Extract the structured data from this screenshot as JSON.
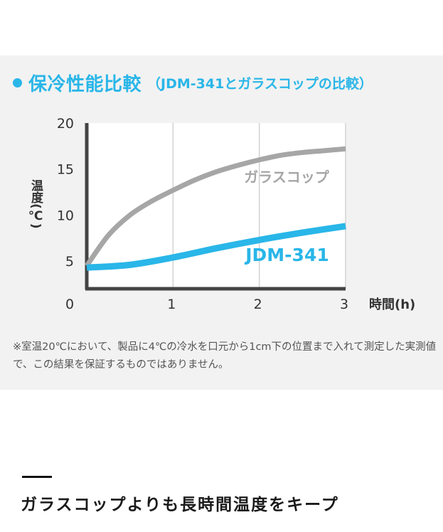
{
  "header": {
    "title": "保冷性能比較",
    "subtitle": "（JDM-341とガラスコップの比較）",
    "accent_color": "#29b6e8"
  },
  "chart_data": {
    "type": "line",
    "ylabel": "温度(℃)",
    "xlabel": "時間(h)",
    "ylim": [
      0,
      20
    ],
    "xlim": [
      0,
      3
    ],
    "y_ticks": [
      "20",
      "15",
      "10",
      "5"
    ],
    "x_ticks": [
      "0",
      "1",
      "2",
      "3"
    ],
    "grid": true,
    "series": [
      {
        "name": "ガラスコップ",
        "color": "#a6a6a6",
        "points": [
          [
            0,
            4.5
          ],
          [
            0.25,
            7.8
          ],
          [
            0.5,
            10.0
          ],
          [
            0.75,
            11.5
          ],
          [
            1,
            12.7
          ],
          [
            1.25,
            13.8
          ],
          [
            1.5,
            14.7
          ],
          [
            1.75,
            15.4
          ],
          [
            2,
            16.0
          ],
          [
            2.25,
            16.5
          ],
          [
            2.5,
            16.8
          ],
          [
            2.75,
            17.0
          ],
          [
            3,
            17.2
          ]
        ]
      },
      {
        "name": "JDM-341",
        "color": "#29b6e8",
        "points": [
          [
            0,
            4.3
          ],
          [
            0.5,
            4.6
          ],
          [
            1,
            5.4
          ],
          [
            1.5,
            6.4
          ],
          [
            2,
            7.3
          ],
          [
            2.5,
            8.1
          ],
          [
            3,
            8.8
          ]
        ]
      }
    ]
  },
  "note": "※室温20℃において、製品に4℃の冷水を口元から1cm下の位置まで入れて測定した実測値で、この結果を保証するものではありません。",
  "tagline": "ガラスコップよりも長時間温度をキープ"
}
